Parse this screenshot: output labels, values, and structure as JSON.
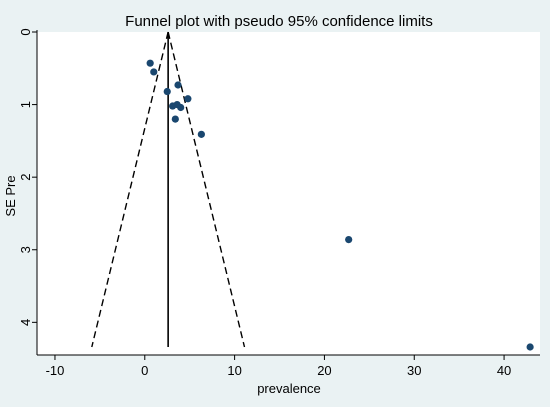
{
  "chart_data": {
    "type": "scatter",
    "title": "Funnel plot with pseudo 95% confidence limits",
    "xlabel": "prevalence",
    "ylabel": "SE Pre",
    "xlim": [
      -12,
      44
    ],
    "ylim": [
      0,
      4.45
    ],
    "y_reversed": true,
    "grid": false,
    "legend": "none",
    "x_ticks": [
      -10,
      0,
      10,
      20,
      30,
      40
    ],
    "x_tick_labels": [
      "-10",
      "0",
      "10",
      "20",
      "30",
      "40"
    ],
    "y_ticks": [
      0,
      1,
      2,
      3,
      4
    ],
    "y_tick_labels": [
      "0",
      "1",
      "2",
      "3",
      "4"
    ],
    "series": [
      {
        "kind": "points",
        "color": "#1a476f",
        "points": [
          {
            "x": 0.6,
            "y": 0.43
          },
          {
            "x": 1.0,
            "y": 0.55
          },
          {
            "x": 2.5,
            "y": 0.82
          },
          {
            "x": 3.7,
            "y": 0.73
          },
          {
            "x": 4.8,
            "y": 0.92
          },
          {
            "x": 3.1,
            "y": 1.02
          },
          {
            "x": 3.6,
            "y": 1.0
          },
          {
            "x": 4.0,
            "y": 1.04
          },
          {
            "x": 3.4,
            "y": 1.2
          },
          {
            "x": 6.3,
            "y": 1.41
          },
          {
            "x": 22.7,
            "y": 2.86
          },
          {
            "x": 42.9,
            "y": 4.34
          }
        ]
      },
      {
        "kind": "vertical-line",
        "color": "#000000",
        "x": 2.6,
        "y_from": 0,
        "y_to": 4.34
      },
      {
        "kind": "dashed-limits",
        "color": "#000000",
        "apex": {
          "x": 2.6,
          "y": 0
        },
        "left_end": {
          "x": -5.9,
          "y": 4.34
        },
        "right_end": {
          "x": 11.1,
          "y": 4.34
        }
      }
    ]
  }
}
